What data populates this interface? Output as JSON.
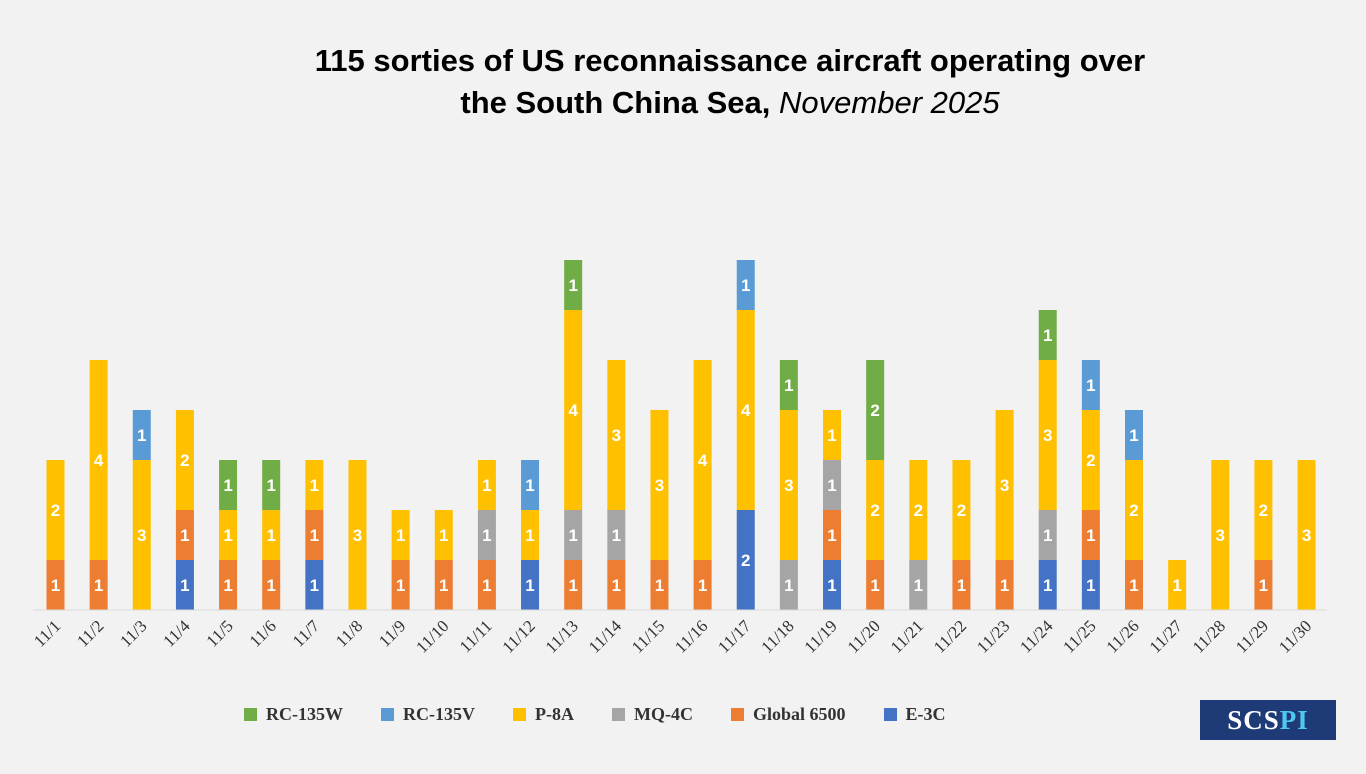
{
  "title": {
    "line1": "115 sorties of US reconnaissance aircraft operating over",
    "line2_main": "the South China Sea, ",
    "line2_italic": "November 2025"
  },
  "logo": {
    "main": "SCS",
    "accent": "PI"
  },
  "chart_data": {
    "type": "bar",
    "stacked": true,
    "title": "115 sorties of US reconnaissance aircraft operating over the South China Sea, November 2025",
    "categories": [
      "11/1",
      "11/2",
      "11/3",
      "11/4",
      "11/5",
      "11/6",
      "11/7",
      "11/8",
      "11/9",
      "11/10",
      "11/11",
      "11/12",
      "11/13",
      "11/14",
      "11/15",
      "11/16",
      "11/17",
      "11/18",
      "11/19",
      "11/20",
      "11/21",
      "11/22",
      "11/23",
      "11/24",
      "11/25",
      "11/26",
      "11/27",
      "11/28",
      "11/29",
      "11/30"
    ],
    "series": [
      {
        "name": "E-3C",
        "color": "#4472c4",
        "values": [
          0,
          0,
          0,
          1,
          0,
          0,
          1,
          0,
          0,
          0,
          0,
          1,
          0,
          0,
          0,
          0,
          2,
          0,
          1,
          0,
          0,
          0,
          0,
          1,
          1,
          0,
          0,
          0,
          0,
          0
        ]
      },
      {
        "name": "Global 6500",
        "color": "#ed7d31",
        "values": [
          1,
          1,
          0,
          1,
          1,
          1,
          1,
          0,
          1,
          1,
          1,
          0,
          1,
          1,
          1,
          1,
          0,
          0,
          1,
          1,
          0,
          1,
          1,
          0,
          1,
          1,
          0,
          0,
          1,
          0
        ]
      },
      {
        "name": "MQ-4C",
        "color": "#a5a5a5",
        "values": [
          0,
          0,
          0,
          0,
          0,
          0,
          0,
          0,
          0,
          0,
          1,
          0,
          1,
          1,
          0,
          0,
          0,
          1,
          1,
          0,
          1,
          0,
          0,
          1,
          0,
          0,
          0,
          0,
          0,
          0
        ]
      },
      {
        "name": "P-8A",
        "color": "#ffc000",
        "values": [
          2,
          4,
          3,
          2,
          1,
          1,
          1,
          3,
          1,
          1,
          1,
          1,
          4,
          3,
          3,
          4,
          4,
          3,
          1,
          2,
          2,
          2,
          3,
          3,
          2,
          2,
          1,
          3,
          2,
          3
        ]
      },
      {
        "name": "RC-135V",
        "color": "#5b9bd5",
        "values": [
          0,
          0,
          1,
          0,
          0,
          0,
          0,
          0,
          0,
          0,
          0,
          1,
          0,
          0,
          0,
          0,
          1,
          0,
          0,
          0,
          0,
          0,
          0,
          0,
          1,
          1,
          0,
          0,
          0,
          0
        ]
      },
      {
        "name": "RC-135W",
        "color": "#70ad47",
        "values": [
          0,
          0,
          0,
          0,
          1,
          1,
          0,
          0,
          0,
          0,
          0,
          0,
          1,
          0,
          0,
          0,
          0,
          1,
          0,
          2,
          0,
          0,
          0,
          1,
          0,
          0,
          0,
          0,
          0,
          0
        ]
      }
    ],
    "legend_order": [
      "RC-135W",
      "RC-135V",
      "P-8A",
      "MQ-4C",
      "Global 6500",
      "E-3C"
    ],
    "ylim": [
      0,
      7
    ],
    "grid": false,
    "legend_position": "bottom"
  }
}
